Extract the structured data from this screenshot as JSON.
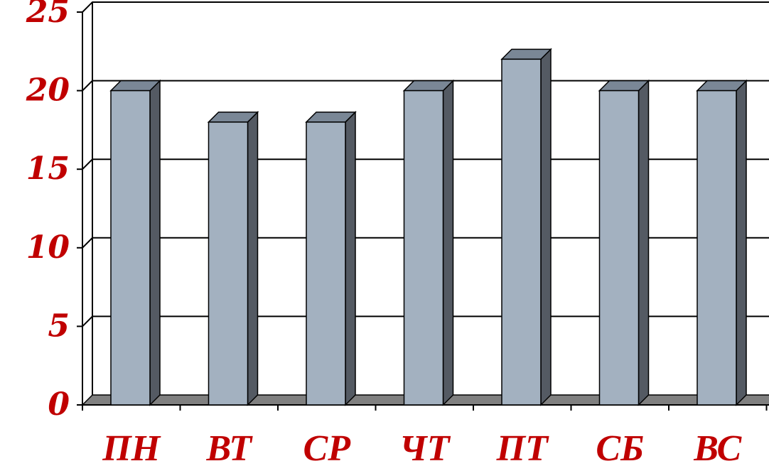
{
  "chart_data": {
    "type": "bar",
    "style": "3d-column",
    "categories": [
      "ПН",
      "ВТ",
      "СР",
      "ЧТ",
      "ПТ",
      "СБ",
      "ВС"
    ],
    "values": [
      20,
      18,
      18,
      20,
      22,
      20,
      20
    ],
    "ylim": [
      0,
      25
    ],
    "yticks": [
      "0",
      "5",
      "10",
      "15",
      "20",
      "25"
    ],
    "grid": true,
    "colors": {
      "bar_front": "#a3b1c0",
      "bar_side": "#545a63",
      "bar_top": "#7a8796",
      "floor": "#808080",
      "grid": "#000000",
      "labels": "#c00000"
    }
  }
}
